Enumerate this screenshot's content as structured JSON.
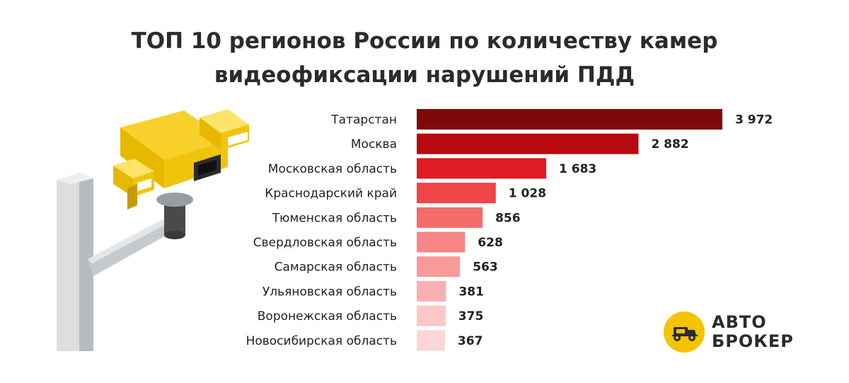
{
  "title": {
    "line1": "ТОП 10 регионов России по количеству камер",
    "line2": "видеофиксации нарушений ПДД"
  },
  "chart_data": {
    "type": "bar",
    "orientation": "horizontal",
    "title": "ТОП 10 регионов России по количеству камер видеофиксации нарушений ПДД",
    "categories": [
      "Татарстан",
      "Москва",
      "Московская область",
      "Краснодарский край",
      "Тюменская область",
      "Свердловская область",
      "Самарская область",
      "Ульяновская область",
      "Воронежская область",
      "Новосибирская область"
    ],
    "values": [
      3972,
      2882,
      1683,
      1028,
      856,
      628,
      563,
      381,
      375,
      367
    ],
    "value_labels": [
      "3 972",
      "2 882",
      "1 683",
      "1 028",
      "856",
      "628",
      "563",
      "381",
      "375",
      "367"
    ],
    "bar_colors": [
      "#7d0a0a",
      "#b8090f",
      "#df1c22",
      "#f04448",
      "#f56a6a",
      "#f78585",
      "#f89a9a",
      "#f9b0b0",
      "#fbc7c7",
      "#fcd5d5"
    ],
    "xlim": [
      0,
      3972
    ],
    "grid": false,
    "legend": "none"
  },
  "logo": {
    "line1": "АВТО",
    "line2": "БРОКЕР",
    "badge_color": "#f5c400"
  },
  "illustration": {
    "icon": "traffic-camera-icon"
  }
}
